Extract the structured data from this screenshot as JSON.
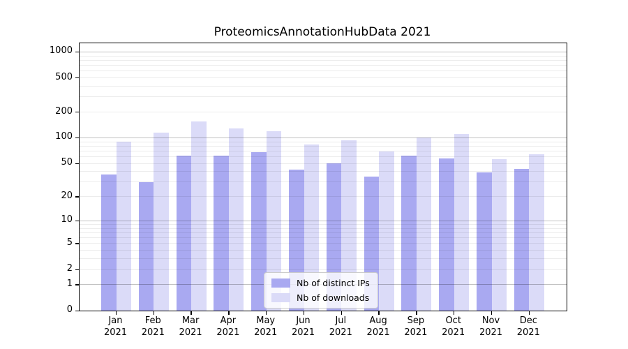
{
  "title": "ProteomicsAnnotationHubData 2021",
  "background": "#ffffff",
  "chart_data": {
    "type": "bar",
    "title": "ProteomicsAnnotationHubData 2021",
    "categories": [
      "Jan",
      "Feb",
      "Mar",
      "Apr",
      "May",
      "Jun",
      "Jul",
      "Aug",
      "Sep",
      "Oct",
      "Nov",
      "Dec"
    ],
    "category_year": "2021",
    "series": [
      {
        "name": "Nb of distinct IPs",
        "color": "#a9a9f1",
        "values": [
          37,
          30,
          62,
          62,
          68,
          42,
          50,
          35,
          62,
          57,
          39,
          43
        ]
      },
      {
        "name": "Nb of downloads",
        "color": "#dbdbf8",
        "values": [
          90,
          116,
          156,
          130,
          120,
          83,
          93,
          69,
          101,
          111,
          56,
          64
        ]
      }
    ],
    "xlabel": "",
    "ylabel": "",
    "yscale": "log10(value+1)",
    "ylim": [
      0,
      1280
    ],
    "yticks": [
      1000,
      500,
      200,
      100,
      50,
      20,
      10,
      5,
      2,
      1,
      0
    ],
    "grid": "horizontal log gridlines, drawn over bars",
    "grid_minor_values": [
      2,
      3,
      4,
      5,
      6,
      7,
      8,
      9,
      20,
      30,
      40,
      50,
      60,
      70,
      80,
      90,
      200,
      300,
      400,
      500,
      600,
      700,
      800,
      900
    ],
    "grid_major_values": [
      1,
      10,
      100,
      1000
    ],
    "legend_position": "lower center",
    "legend_entries": [
      "Nb of distinct IPs",
      "Nb of downloads"
    ]
  }
}
